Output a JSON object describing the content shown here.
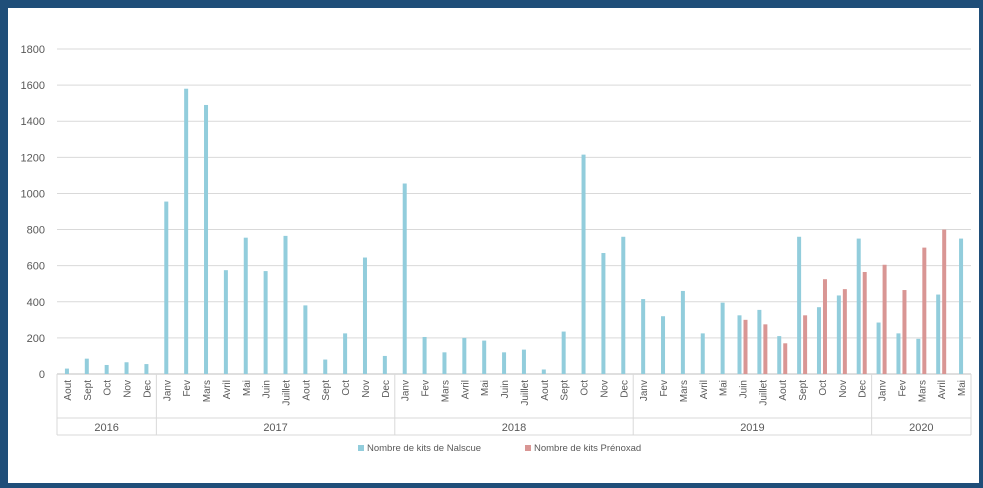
{
  "chart_data": {
    "type": "bar",
    "ylim": [
      0,
      1800
    ],
    "yticks": [
      0,
      200,
      400,
      600,
      800,
      1000,
      1200,
      1400,
      1600,
      1800
    ],
    "grid": true,
    "legend_position": "bottom",
    "categories": [
      "Aout",
      "Sept",
      "Oct",
      "Nov",
      "Dec",
      "Janv",
      "Fev",
      "Mars",
      "Avril",
      "Mai",
      "Juin",
      "Juillet",
      "Aout",
      "Sept",
      "Oct",
      "Nov",
      "Dec",
      "Janv",
      "Fev",
      "Mars",
      "Avril",
      "Mai",
      "Juin",
      "Juillet",
      "Aout",
      "Sept",
      "Oct",
      "Nov",
      "Dec",
      "Janv",
      "Fev",
      "Mars",
      "Avril",
      "Mai",
      "Juin",
      "Juillet",
      "Aout",
      "Sept",
      "Oct",
      "Nov",
      "Dec",
      "Janv",
      "Fev",
      "Mars",
      "Avril",
      "Mai"
    ],
    "year_groups": [
      {
        "label": "2016",
        "count": 5
      },
      {
        "label": "2017",
        "count": 12
      },
      {
        "label": "2018",
        "count": 12
      },
      {
        "label": "2019",
        "count": 12
      },
      {
        "label": "2020",
        "count": 5
      }
    ],
    "series": [
      {
        "name": "Nombre de kits de Nalscue",
        "color": "#92cddc",
        "values": [
          30,
          85,
          50,
          65,
          55,
          955,
          1580,
          1490,
          575,
          755,
          570,
          765,
          380,
          80,
          225,
          645,
          100,
          1055,
          205,
          120,
          200,
          185,
          120,
          135,
          25,
          235,
          1215,
          670,
          760,
          415,
          320,
          460,
          225,
          395,
          325,
          355,
          210,
          760,
          370,
          435,
          750,
          285,
          225,
          195,
          440,
          750
        ]
      },
      {
        "name": "Nombre de kits Prénoxad",
        "color": "#d99694",
        "values": [
          null,
          null,
          null,
          null,
          null,
          null,
          null,
          null,
          null,
          null,
          null,
          null,
          null,
          null,
          null,
          null,
          null,
          null,
          null,
          null,
          null,
          null,
          null,
          null,
          null,
          null,
          null,
          null,
          null,
          null,
          null,
          null,
          null,
          null,
          300,
          275,
          170,
          325,
          525,
          470,
          565,
          605,
          465,
          700,
          800,
          null
        ]
      }
    ]
  }
}
